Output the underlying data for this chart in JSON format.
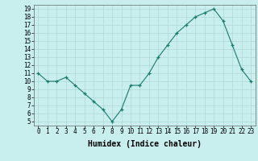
{
  "x": [
    0,
    1,
    2,
    3,
    4,
    5,
    6,
    7,
    8,
    9,
    10,
    11,
    12,
    13,
    14,
    15,
    16,
    17,
    18,
    19,
    20,
    21,
    22,
    23
  ],
  "y": [
    11,
    10,
    10,
    10.5,
    9.5,
    8.5,
    7.5,
    6.5,
    5,
    6.5,
    9.5,
    9.5,
    11,
    13,
    14.5,
    16,
    17,
    18,
    18.5,
    19,
    17.5,
    14.5,
    11.5,
    10
  ],
  "line_color": "#1a7a6e",
  "marker_color": "#1a7a6e",
  "bg_color": "#c8eeee",
  "grid_color": "#b0d8d8",
  "xlabel": "Humidex (Indice chaleur)",
  "xlim": [
    -0.5,
    23.5
  ],
  "ylim": [
    4.5,
    19.5
  ],
  "yticks": [
    5,
    6,
    7,
    8,
    9,
    10,
    11,
    12,
    13,
    14,
    15,
    16,
    17,
    18,
    19
  ],
  "xticks": [
    0,
    1,
    2,
    3,
    4,
    5,
    6,
    7,
    8,
    9,
    10,
    11,
    12,
    13,
    14,
    15,
    16,
    17,
    18,
    19,
    20,
    21,
    22,
    23
  ],
  "tick_fontsize": 5.5,
  "xlabel_fontsize": 7.0
}
